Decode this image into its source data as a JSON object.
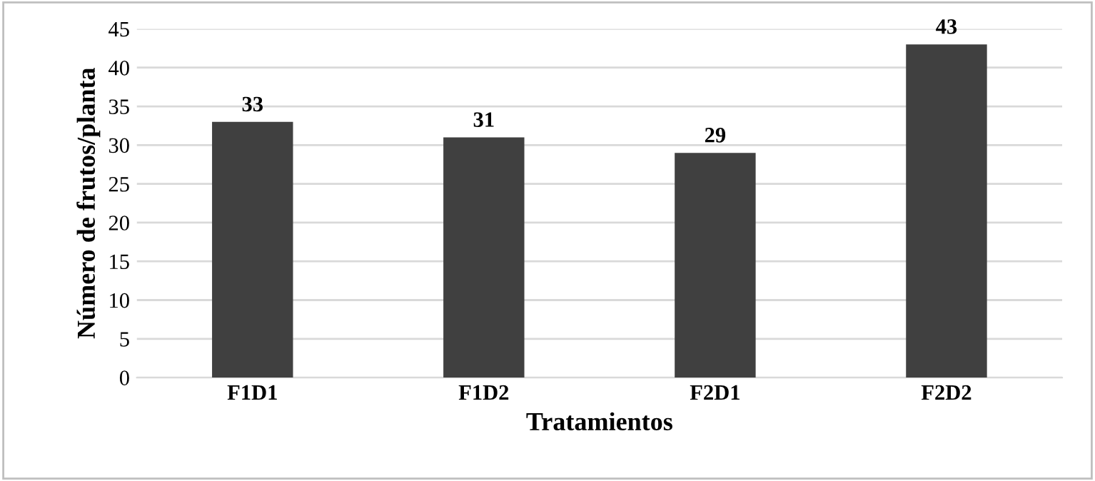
{
  "chart_data": {
    "type": "bar",
    "xlabel": "Tratamientos",
    "ylabel": "Número de frutos/planta",
    "categories": [
      "F1D1",
      "F1D2",
      "F2D1",
      "F2D2"
    ],
    "values": [
      33,
      31,
      29,
      43
    ],
    "color": "#404040",
    "ylim": [
      0,
      45
    ],
    "yticks": [
      0,
      5,
      10,
      15,
      20,
      25,
      30,
      35,
      40,
      45
    ],
    "grid": "y",
    "data_labels": true
  }
}
